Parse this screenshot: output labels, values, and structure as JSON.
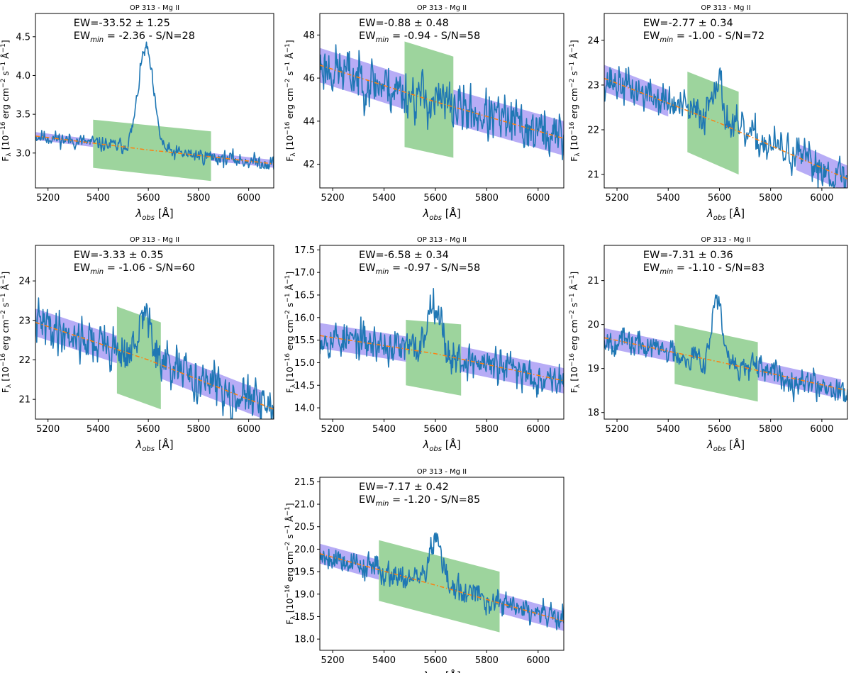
{
  "figure": {
    "x_tick_labels": [
      "5200",
      "5400",
      "5600",
      "5800",
      "6000"
    ],
    "colors": {
      "spectrum": "#1f77b4",
      "continuum": "#ff7f0e",
      "continuum_band": "#7b68ee",
      "line_band": "#5cb85c"
    }
  },
  "chart_data": [
    {
      "type": "line",
      "title": "OP 313 - Mg II",
      "xlabel": "λ_obs [Å]",
      "ylabel": "F_λ [10^-16 erg cm^-2 s^-1 Å^-1]",
      "xlabel_parts": [
        "λ",
        "obs",
        " [Å]"
      ],
      "ylabel_parts": [
        "F",
        "λ",
        " [10",
        "−16",
        " erg cm",
        "−2",
        " s",
        "−1",
        " Å",
        "−1",
        "]"
      ],
      "ew_text": "EW=-33.52 ± 1.25",
      "ewmin_parts": [
        "EW",
        "min",
        " = -2.36 - S/N=28"
      ],
      "xlim": [
        5150,
        6100
      ],
      "ylim": [
        2.55,
        4.8
      ],
      "yticks": [
        3.0,
        3.5,
        4.0,
        4.5
      ],
      "ytick_labels": [
        "3.0",
        "3.5",
        "4.0",
        "4.5"
      ],
      "continuum": {
        "x": [
          5150,
          5400,
          5600,
          5800,
          6100
        ],
        "y": [
          3.22,
          3.12,
          3.04,
          2.97,
          2.86
        ]
      },
      "continuum_windows": [
        [
          5150,
          5380,
          0.05
        ],
        [
          5850,
          6100,
          0.05
        ]
      ],
      "line_window": {
        "x_range": [
          5380,
          5850
        ],
        "top": [
          3.43,
          3.28
        ],
        "bottom": [
          2.81,
          2.64
        ]
      },
      "spectrum": {
        "peak_x": 5590,
        "peak_amp": 1.3,
        "peak_sigma": 30,
        "noise": 0.07,
        "seed": 11
      }
    },
    {
      "type": "line",
      "title": "OP 313 - Mg II",
      "xlabel": "λ_obs [Å]",
      "ylabel": "F_λ [10^-16 erg cm^-2 s^-1 Å^-1]",
      "xlabel_parts": [
        "λ",
        "obs",
        " [Å]"
      ],
      "ylabel_parts": [
        "F",
        "λ",
        " [10",
        "−16",
        " erg cm",
        "−2",
        " s",
        "−1",
        " Å",
        "−1",
        "]"
      ],
      "ew_text": "EW=-0.88 ± 0.48",
      "ewmin_parts": [
        "EW",
        "min",
        " = -0.94 - S/N=58"
      ],
      "xlim": [
        5150,
        6100
      ],
      "ylim": [
        40.9,
        49.0
      ],
      "yticks": [
        42,
        44,
        46,
        48
      ],
      "ytick_labels": [
        "42",
        "44",
        "46",
        "48"
      ],
      "continuum": {
        "x": [
          5150,
          5600,
          6100
        ],
        "y": [
          46.6,
          44.9,
          43.2
        ]
      },
      "continuum_windows": [
        [
          5150,
          5480,
          0.8
        ],
        [
          5670,
          6100,
          0.8
        ]
      ],
      "line_window": {
        "x_range": [
          5480,
          5670
        ],
        "top": [
          47.7,
          47.0
        ],
        "bottom": [
          42.8,
          42.3
        ]
      },
      "spectrum": {
        "peak_x": 5590,
        "peak_amp": 0.0,
        "peak_sigma": 30,
        "noise": 0.85,
        "seed": 23
      }
    },
    {
      "type": "line",
      "title": "OP 313 - Mg II",
      "xlabel": "λ_obs [Å]",
      "ylabel": "F_λ [10^-16 erg cm^-2 s^-1 Å^-1]",
      "xlabel_parts": [
        "λ",
        "obs",
        " [Å]"
      ],
      "ylabel_parts": [
        "F",
        "λ",
        " [10",
        "−16",
        " erg cm",
        "−2",
        " s",
        "−1",
        " Å",
        "−1",
        "]"
      ],
      "ew_text": "EW=-2.77 ± 0.34",
      "ewmin_parts": [
        "EW",
        "min",
        " = -1.00 - S/N=72"
      ],
      "xlim": [
        5150,
        6100
      ],
      "ylim": [
        20.7,
        24.6
      ],
      "yticks": [
        21,
        22,
        23,
        24
      ],
      "ytick_labels": [
        "21",
        "22",
        "23",
        "24"
      ],
      "continuum": {
        "x": [
          5150,
          5600,
          6100
        ],
        "y": [
          23.15,
          22.15,
          20.9
        ]
      },
      "continuum_windows": [
        [
          5150,
          5400,
          0.3
        ],
        [
          5900,
          6100,
          0.3
        ]
      ],
      "line_window": {
        "x_range": [
          5475,
          5675
        ],
        "top": [
          23.3,
          22.85
        ],
        "bottom": [
          21.5,
          21.0
        ]
      },
      "spectrum": {
        "peak_x": 5590,
        "peak_amp": 1.0,
        "peak_sigma": 22,
        "noise": 0.3,
        "seed": 37
      }
    },
    {
      "type": "line",
      "title": "OP 313 - Mg II",
      "xlabel": "λ_obs [Å]",
      "ylabel": "F_λ [10^-16 erg cm^-2 s^-1 Å^-1]",
      "xlabel_parts": [
        "λ",
        "obs",
        " [Å]"
      ],
      "ylabel_parts": [
        "F",
        "λ",
        " [10",
        "−16",
        " erg cm",
        "−2",
        " s",
        "−1",
        " Å",
        "−1",
        "]"
      ],
      "ew_text": "EW=-3.33 ± 0.35",
      "ewmin_parts": [
        "EW",
        "min",
        " = -1.06 - S/N=60"
      ],
      "xlim": [
        5150,
        6100
      ],
      "ylim": [
        20.5,
        24.9
      ],
      "yticks": [
        21,
        22,
        23,
        24
      ],
      "ytick_labels": [
        "21",
        "22",
        "23",
        "24"
      ],
      "continuum": {
        "x": [
          5150,
          5600,
          6100
        ],
        "y": [
          22.95,
          22.0,
          20.75
        ]
      },
      "continuum_windows": [
        [
          5150,
          5475,
          0.35
        ],
        [
          5650,
          6050,
          0.35
        ]
      ],
      "line_window": {
        "x_range": [
          5475,
          5650
        ],
        "top": [
          23.35,
          22.95
        ],
        "bottom": [
          21.15,
          20.75
        ]
      },
      "spectrum": {
        "peak_x": 5590,
        "peak_amp": 1.2,
        "peak_sigma": 22,
        "noise": 0.4,
        "seed": 41
      }
    },
    {
      "type": "line",
      "title": "OP 313 - Mg II",
      "xlabel": "λ_obs [Å]",
      "ylabel": "F_λ [10^-16 erg cm^-2 s^-1 Å^-1]",
      "xlabel_parts": [
        "λ",
        "obs",
        " [Å]"
      ],
      "ylabel_parts": [
        "F",
        "λ",
        " [10",
        "−16",
        " erg cm",
        "−2",
        " s",
        "−1",
        " Å",
        "−1",
        "]"
      ],
      "ew_text": "EW=-6.58 ± 0.34",
      "ewmin_parts": [
        "EW",
        "min",
        " = -0.97 - S/N=58"
      ],
      "xlim": [
        5150,
        6100
      ],
      "ylim": [
        13.75,
        17.6
      ],
      "yticks": [
        14.0,
        14.5,
        15.0,
        15.5,
        16.0,
        16.5,
        17.0,
        17.5
      ],
      "ytick_labels": [
        "14.0",
        "14.5",
        "15.0",
        "15.5",
        "16.0",
        "16.5",
        "17.0",
        "17.5"
      ],
      "continuum": {
        "x": [
          5150,
          5600,
          6100
        ],
        "y": [
          15.6,
          15.2,
          14.6
        ]
      },
      "continuum_windows": [
        [
          5150,
          5485,
          0.28
        ],
        [
          5700,
          6100,
          0.28
        ]
      ],
      "line_window": {
        "x_range": [
          5485,
          5700
        ],
        "top": [
          15.95,
          15.85
        ],
        "bottom": [
          14.5,
          14.27
        ]
      },
      "spectrum": {
        "peak_x": 5595,
        "peak_amp": 1.25,
        "peak_sigma": 25,
        "noise": 0.3,
        "seed": 53
      }
    },
    {
      "type": "line",
      "title": "OP 313 - Mg II",
      "xlabel": "λ_obs [Å]",
      "ylabel": "F_λ [10^-16 erg cm^-2 s^-1 Å^-1]",
      "xlabel_parts": [
        "λ",
        "obs",
        " [Å]"
      ],
      "ylabel_parts": [
        "F",
        "λ",
        " [10",
        "−16",
        " erg cm",
        "−2",
        " s",
        "−1",
        " Å",
        "−1",
        "]"
      ],
      "ew_text": "EW=-7.31 ± 0.36",
      "ewmin_parts": [
        "EW",
        "min",
        " = -1.10 - S/N=83"
      ],
      "xlim": [
        5150,
        6100
      ],
      "ylim": [
        17.85,
        21.8
      ],
      "yticks": [
        18,
        19,
        20,
        21
      ],
      "ytick_labels": [
        "18",
        "19",
        "20",
        "21"
      ],
      "continuum": {
        "x": [
          5150,
          5600,
          6100
        ],
        "y": [
          19.7,
          19.15,
          18.5
        ]
      },
      "continuum_windows": [
        [
          5150,
          5425,
          0.22
        ],
        [
          5750,
          6075,
          0.22
        ]
      ],
      "line_window": {
        "x_range": [
          5425,
          5750
        ],
        "top": [
          20.0,
          19.6
        ],
        "bottom": [
          18.65,
          18.25
        ]
      },
      "spectrum": {
        "peak_x": 5590,
        "peak_amp": 1.5,
        "peak_sigma": 18,
        "noise": 0.22,
        "seed": 67
      }
    },
    {
      "type": "line",
      "title": "OP 313 - Mg II",
      "xlabel": "λ_obs [Å]",
      "ylabel": "F_λ [10^-16 erg cm^-2 s^-1 Å^-1]",
      "xlabel_parts": [
        "λ",
        "obs",
        " [Å]"
      ],
      "ylabel_parts": [
        "F",
        "λ",
        " [10",
        "−16",
        " erg cm",
        "−2",
        " s",
        "−1",
        " Å",
        "−1",
        "]"
      ],
      "ew_text": "EW=-7.17 ± 0.42",
      "ewmin_parts": [
        "EW",
        "min",
        " = -1.20 - S/N=85"
      ],
      "xlim": [
        5150,
        6100
      ],
      "ylim": [
        17.75,
        21.6
      ],
      "yticks": [
        18.0,
        18.5,
        19.0,
        19.5,
        20.0,
        20.5,
        21.0,
        21.5
      ],
      "ytick_labels": [
        "18.0",
        "18.5",
        "19.0",
        "19.5",
        "20.0",
        "20.5",
        "21.0",
        "21.5"
      ],
      "continuum": {
        "x": [
          5150,
          5600,
          6100
        ],
        "y": [
          19.9,
          19.2,
          18.4
        ]
      },
      "continuum_windows": [
        [
          5150,
          5380,
          0.22
        ],
        [
          5850,
          6100,
          0.22
        ]
      ],
      "line_window": {
        "x_range": [
          5380,
          5850
        ],
        "top": [
          20.2,
          19.5
        ],
        "bottom": [
          18.85,
          18.15
        ]
      },
      "spectrum": {
        "peak_x": 5600,
        "peak_amp": 1.0,
        "peak_sigma": 25,
        "noise": 0.22,
        "seed": 79
      }
    }
  ]
}
